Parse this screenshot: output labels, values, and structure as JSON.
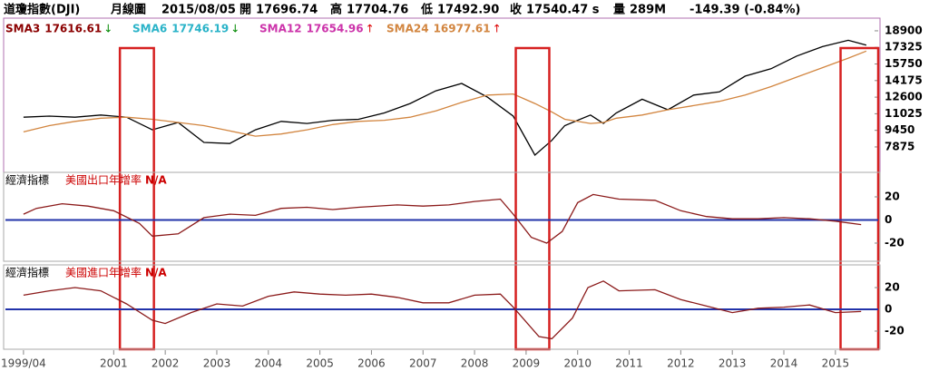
{
  "header": {
    "name": "道瓊指數(DJI)",
    "period": "月線圖",
    "date": "2015/08/05",
    "open_label": "開",
    "open": "17696.74",
    "high_label": "高",
    "high": "17704.76",
    "low_label": "低",
    "low": "17492.90",
    "close_label": "收",
    "close": "17540.47 s",
    "volume_label": "量",
    "volume": "289M",
    "change": "-149.39 (-0.84%)"
  },
  "chart_data": [
    {
      "type": "line",
      "legend": [
        {
          "name": "SMA3",
          "value": 17616.61,
          "arrow": "↓",
          "color": "#8b0000"
        },
        {
          "name": "SMA6",
          "value": 17746.19,
          "arrow": "↓",
          "color": "#2ab3c8"
        },
        {
          "name": "SMA12",
          "value": 17654.96,
          "arrow": "↑",
          "color": "#cc33aa"
        },
        {
          "name": "SMA24",
          "value": 16977.61,
          "arrow": "↑",
          "color": "#d2853f"
        }
      ],
      "x": [
        1999.25,
        1999.75,
        2000.25,
        2000.75,
        2001.25,
        2001.75,
        2002.25,
        2002.75,
        2003.25,
        2003.75,
        2004.25,
        2004.75,
        2005.25,
        2005.75,
        2006.25,
        2006.75,
        2007.25,
        2007.75,
        2008.25,
        2008.75,
        2009.17,
        2009.5,
        2009.75,
        2010.25,
        2010.5,
        2010.75,
        2011.25,
        2011.75,
        2012.25,
        2012.75,
        2013.25,
        2013.75,
        2014.25,
        2014.75,
        2015.25,
        2015.6
      ],
      "series": [
        {
          "name": "Close",
          "color": "#000000",
          "values": [
            10700,
            10800,
            10700,
            10900,
            10700,
            9500,
            10200,
            8300,
            8200,
            9500,
            10300,
            10100,
            10400,
            10500,
            11100,
            12000,
            13200,
            13900,
            12600,
            10800,
            7100,
            8500,
            9900,
            10900,
            10100,
            11100,
            12400,
            11400,
            12800,
            13100,
            14600,
            15300,
            16500,
            17400,
            18000,
            17540
          ]
        },
        {
          "name": "SMA24",
          "color": "#d2853f",
          "values": [
            9300,
            9900,
            10300,
            10600,
            10700,
            10500,
            10200,
            9900,
            9400,
            8900,
            9100,
            9500,
            10000,
            10300,
            10400,
            10700,
            11300,
            12100,
            12800,
            12900,
            12000,
            11200,
            10500,
            10100,
            10200,
            10600,
            10900,
            11400,
            11800,
            12200,
            12800,
            13600,
            14500,
            15400,
            16300,
            16977.61
          ]
        }
      ],
      "xlim": [
        1998.9,
        2015.83
      ],
      "xticks": [
        {
          "value": 1999.25,
          "label": "1999/04"
        },
        2001,
        2002,
        2003,
        2004,
        2005,
        2006,
        2007,
        2008,
        2009,
        2010,
        2011,
        2012,
        2013,
        2014,
        2015
      ],
      "ylim": [
        5460,
        19930
      ],
      "yticks": [
        18900,
        17325,
        15750,
        14175,
        12600,
        11025,
        9450,
        7875
      ],
      "highlights": [
        [
          2001.12,
          2001.78
        ],
        [
          2008.8,
          2009.45
        ],
        [
          2015.1,
          2015.83
        ]
      ]
    },
    {
      "type": "line",
      "title": "經濟指標",
      "subtitle": "美國出口年增率",
      "annotation": "N/A",
      "x": [
        1999.25,
        1999.5,
        2000,
        2000.5,
        2001,
        2001.5,
        2001.75,
        2002.25,
        2002.75,
        2003.25,
        2003.75,
        2004.25,
        2004.75,
        2005.25,
        2005.75,
        2006.5,
        2007,
        2007.5,
        2008,
        2008.5,
        2008.75,
        2009.1,
        2009.4,
        2009.7,
        2010,
        2010.3,
        2010.8,
        2011.5,
        2012,
        2012.5,
        2013,
        2013.5,
        2014,
        2014.5,
        2015,
        2015.5
      ],
      "series": [
        {
          "name": "美國出口年增率",
          "color": "#8b1a1a",
          "values": [
            5,
            10,
            14,
            12,
            8,
            -3,
            -14,
            -12,
            2,
            5,
            4,
            10,
            11,
            9,
            11,
            13,
            12,
            13,
            16,
            18,
            5,
            -15,
            -20,
            -10,
            15,
            22,
            18,
            17,
            8,
            3,
            1,
            1,
            2,
            1,
            -1,
            -4
          ]
        }
      ],
      "xlim": [
        1998.9,
        2015.83
      ],
      "ylim": [
        -35.7,
        39.6
      ],
      "yticks": [
        20,
        0,
        -20
      ]
    },
    {
      "type": "line",
      "title": "經濟指標",
      "subtitle": "美國進口年增率",
      "annotation": "N/A",
      "x": [
        1999.25,
        1999.75,
        2000.25,
        2000.75,
        2001.25,
        2001.75,
        2002,
        2002.5,
        2003,
        2003.5,
        2004,
        2004.5,
        2005,
        2005.5,
        2006,
        2006.5,
        2007,
        2007.5,
        2008,
        2008.5,
        2008.75,
        2009.25,
        2009.5,
        2009.9,
        2010.2,
        2010.5,
        2010.8,
        2011.5,
        2012,
        2012.5,
        2013,
        2013.5,
        2014,
        2014.5,
        2015,
        2015.5
      ],
      "series": [
        {
          "name": "美國進口年增率",
          "color": "#8b1a1a",
          "values": [
            13,
            17,
            20,
            17,
            5,
            -10,
            -13,
            -3,
            5,
            3,
            12,
            16,
            14,
            13,
            14,
            11,
            6,
            6,
            13,
            14,
            2,
            -25,
            -27,
            -8,
            20,
            26,
            17,
            18,
            9,
            3,
            -3,
            1,
            2,
            4,
            -3,
            -2
          ]
        }
      ],
      "xlim": [
        1998.9,
        2015.83
      ],
      "ylim": [
        -36.7,
        39.2
      ],
      "yticks": [
        20,
        0,
        -20
      ]
    }
  ]
}
